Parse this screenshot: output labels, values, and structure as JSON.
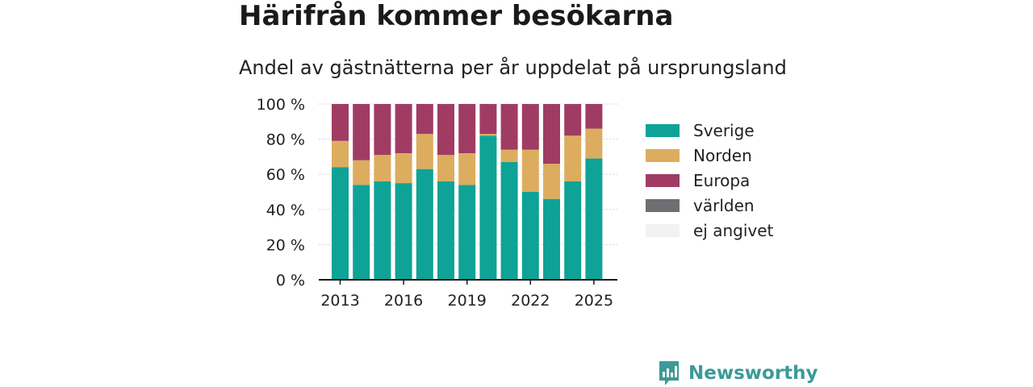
{
  "title": "Härifrån kommer besökarna",
  "subtitle": "Andel av gästnätterna per år uppdelat på ursprungsland",
  "brand": {
    "name": "Newsworthy",
    "logo_icon": "bar-chart-speech-bubble-icon"
  },
  "chart_data": {
    "type": "bar",
    "stacked": true,
    "title": "Härifrån kommer besökarna",
    "subtitle": "Andel av gästnätterna per år uppdelat på ursprungsland",
    "xlabel": "",
    "ylabel": "",
    "ylim": [
      0,
      100
    ],
    "yticks": [
      0,
      20,
      40,
      60,
      80,
      100
    ],
    "ytick_labels": [
      "0 %",
      "20 %",
      "40 %",
      "60 %",
      "80 %",
      "100 %"
    ],
    "xticks": [
      "2013",
      "2016",
      "2019",
      "2022",
      "2025"
    ],
    "categories": [
      "2013",
      "2014",
      "2015",
      "2016",
      "2017",
      "2018",
      "2019",
      "2020",
      "2021",
      "2022",
      "2023",
      "2024",
      "2025"
    ],
    "grid": true,
    "legend_position": "right",
    "series": [
      {
        "name": "Sverige",
        "color": "#0ea396",
        "values": [
          64,
          54,
          56,
          55,
          63,
          56,
          54,
          82,
          67,
          50,
          46,
          56,
          69
        ]
      },
      {
        "name": "Norden",
        "color": "#dcad5f",
        "values": [
          15,
          14,
          15,
          17,
          20,
          15,
          18,
          1,
          7,
          24,
          20,
          26,
          17
        ]
      },
      {
        "name": "Europa",
        "color": "#a03c63",
        "values": [
          21,
          32,
          29,
          28,
          17,
          29,
          28,
          17,
          26,
          26,
          34,
          18,
          14
        ]
      },
      {
        "name": "världen",
        "color": "#6e6e73",
        "values": [
          0,
          0,
          0,
          0,
          0,
          0,
          0,
          0,
          0,
          0,
          0,
          0,
          0
        ]
      },
      {
        "name": "ej angivet",
        "color": "#f2f2f2",
        "values": [
          0,
          0,
          0,
          0,
          0,
          0,
          0,
          0,
          0,
          0,
          0,
          0,
          0
        ]
      }
    ]
  }
}
